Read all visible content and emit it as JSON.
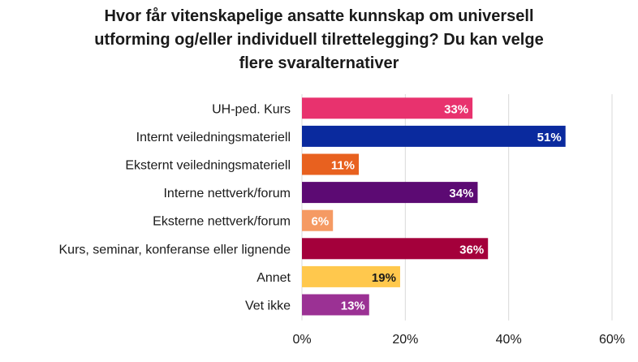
{
  "chart_data": {
    "type": "bar",
    "orientation": "horizontal",
    "title_lines": [
      "Hvor får vitenskapelige ansatte kunnskap om universell",
      "utforming og/eller individuell tilrettelegging? Du kan velge",
      "flere svaralternativer"
    ],
    "categories": [
      "UH-ped. Kurs",
      "Internt veiledningsmateriell",
      "Eksternt veiledningsmateriell",
      "Interne nettverk/forum",
      "Eksterne nettverk/forum",
      "Kurs, seminar, konferanse eller lignende",
      "Annet",
      "Vet ikke"
    ],
    "values": [
      33,
      51,
      11,
      34,
      6,
      36,
      19,
      13
    ],
    "data_labels": [
      "33%",
      "51%",
      "11%",
      "34%",
      "6%",
      "36%",
      "19%",
      "13%"
    ],
    "colors": [
      "#e8326e",
      "#0a2a9e",
      "#e8611f",
      "#5c0a73",
      "#f59a63",
      "#a4003b",
      "#ffc84d",
      "#9b3194"
    ],
    "label_colors": [
      "#ffffff",
      "#ffffff",
      "#ffffff",
      "#ffffff",
      "#ffffff",
      "#ffffff",
      "#1a1a1a",
      "#ffffff"
    ],
    "xlim": [
      0,
      60
    ],
    "xticks": [
      0,
      20,
      40,
      60
    ],
    "xtick_labels": [
      "0%",
      "20%",
      "40%",
      "60%"
    ],
    "grid": true,
    "legend": false
  }
}
